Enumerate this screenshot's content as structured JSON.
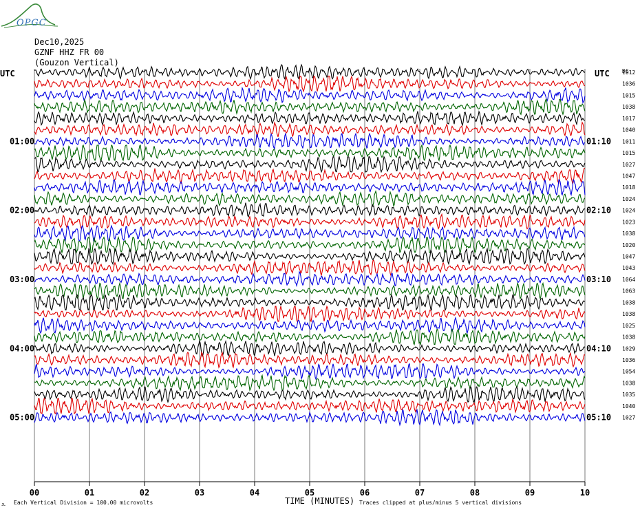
{
  "header": {
    "logo_text": "OPGC",
    "date": "Dec10,2025",
    "station": "GZNF HHZ FR 00",
    "location": "(Gouzon Vertical)"
  },
  "chart_data": {
    "type": "line",
    "title": "",
    "xlabel": "TIME (MINUTES)",
    "ylabel": "",
    "left_axis_label": "UTC",
    "right_axis_label": "UTC",
    "right_column_header": "DC",
    "xlim": [
      0,
      10
    ],
    "x_ticks": [
      "00",
      "01",
      "02",
      "03",
      "04",
      "05",
      "06",
      "07",
      "08",
      "09",
      "10"
    ],
    "grid": "vertical",
    "trace_colors": [
      "#000000",
      "#e00000",
      "#0000e0",
      "#006400"
    ],
    "left_time_labels": [
      {
        "trace": 6,
        "label": "01:00"
      },
      {
        "trace": 12,
        "label": "02:00"
      },
      {
        "trace": 18,
        "label": "03:00"
      },
      {
        "trace": 24,
        "label": "04:00"
      },
      {
        "trace": 30,
        "label": "05:00"
      }
    ],
    "right_time_labels": [
      {
        "trace": 6,
        "label": "01:10"
      },
      {
        "trace": 12,
        "label": "02:10"
      },
      {
        "trace": 18,
        "label": "03:10"
      },
      {
        "trace": 24,
        "label": "04:10"
      },
      {
        "trace": 30,
        "label": "05:10"
      }
    ],
    "dc_values": [
      "1012",
      "1036",
      "1015",
      "1038",
      "1017",
      "1040",
      "1011",
      "1015",
      "1027",
      "1047",
      "1018",
      "1024",
      "1024",
      "1023",
      "1038",
      "1020",
      "1047",
      "1043",
      "1064",
      "1063",
      "1038",
      "1038",
      "1025",
      "1038",
      "1029",
      "1036",
      "1054",
      "1038",
      "1035",
      "1040",
      "1027"
    ],
    "footer_left": "Each Vertical Division =  100.00 microvolts",
    "footer_right": "Traces clipped at plus/minus 5 vertical divisions",
    "corner_mark": "JL"
  }
}
